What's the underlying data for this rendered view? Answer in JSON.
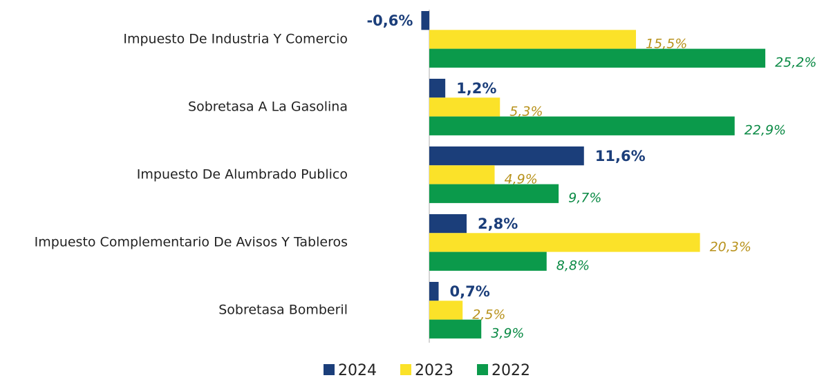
{
  "chart_data": {
    "type": "bar",
    "orientation": "horizontal",
    "categories": [
      "Impuesto De Industria Y Comercio",
      "Sobretasa A La Gasolina",
      "Impuesto De Alumbrado Publico",
      "Impuesto Complementario De Avisos Y Tableros",
      "Sobretasa Bomberil"
    ],
    "series": [
      {
        "name": "2024",
        "color": "#1b3e7a",
        "values": [
          -0.6,
          1.2,
          11.6,
          2.8,
          0.7
        ],
        "value_labels": [
          "-0,6%",
          "1,2%",
          "11,6%",
          "2,8%",
          "0,7%"
        ]
      },
      {
        "name": "2023",
        "color": "#fbe229",
        "values": [
          15.5,
          5.3,
          4.9,
          20.3,
          2.5
        ],
        "value_labels": [
          "15,5%",
          "5,3%",
          "4,9%",
          "20,3%",
          "2,5%"
        ]
      },
      {
        "name": "2022",
        "color": "#0b9a4b",
        "values": [
          25.2,
          22.9,
          9.7,
          8.8,
          3.9
        ],
        "value_labels": [
          "25,2%",
          "22,9%",
          "9,7%",
          "8,8%",
          "3,9%"
        ]
      }
    ],
    "legend": "bottom"
  }
}
